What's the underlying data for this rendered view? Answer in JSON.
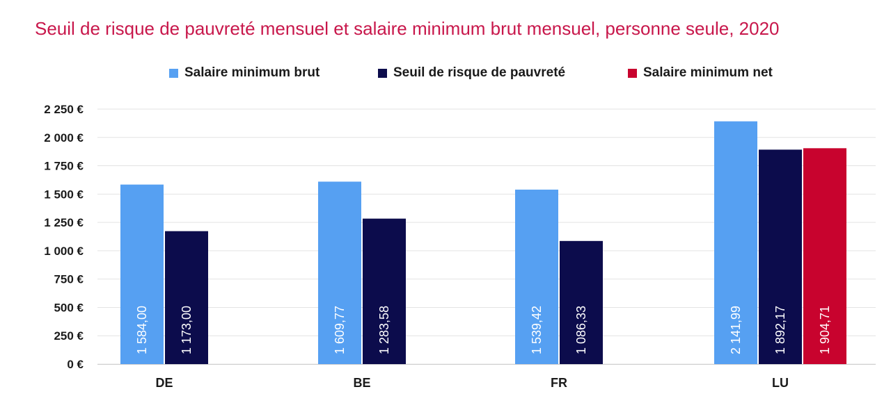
{
  "chart_data": {
    "type": "bar",
    "title": "Seuil de risque de pauvreté mensuel et salaire minimum brut mensuel, personne seule, 2020",
    "xlabel": "",
    "ylabel": "",
    "categories": [
      "DE",
      "BE",
      "FR",
      "LU"
    ],
    "series": [
      {
        "name": "Salaire minimum brut",
        "color": "#56a0f2",
        "values": [
          1584.0,
          1609.77,
          1539.42,
          2141.99
        ],
        "labels": [
          "1 584,00",
          "1 609,77",
          "1 539,42",
          "2 141,99"
        ]
      },
      {
        "name": "Seuil de risque de pauvreté",
        "color": "#0c0c4c",
        "values": [
          1173.0,
          1283.58,
          1086.33,
          1892.17
        ],
        "labels": [
          "1 173,00",
          "1 283,58",
          "1 086,33",
          "1 892,17"
        ]
      },
      {
        "name": "Salaire minimum net",
        "color": "#c8032e",
        "values": [
          null,
          null,
          null,
          1904.71
        ],
        "labels": [
          null,
          null,
          null,
          "1 904,71"
        ]
      }
    ],
    "ylim": [
      0,
      2250
    ],
    "yticks": [
      0,
      250,
      500,
      750,
      1000,
      1250,
      1500,
      1750,
      2000,
      2250
    ],
    "ytick_labels": [
      "0 €",
      "250 €",
      "500 €",
      "750 €",
      "1 000 €",
      "1 250 €",
      "1 500 €",
      "1 750 €",
      "2 000 €",
      "2 250 €"
    ],
    "grid": true,
    "legend_position": "top"
  }
}
